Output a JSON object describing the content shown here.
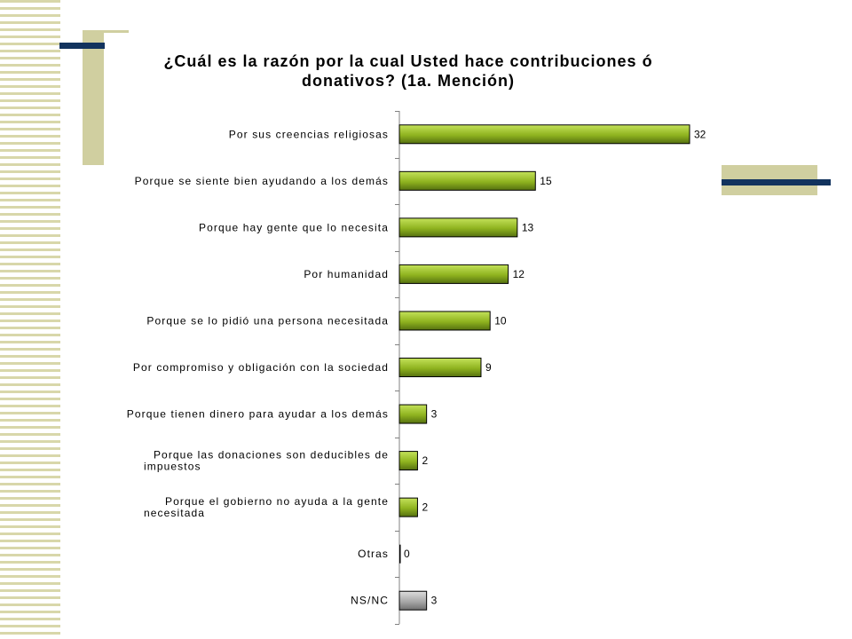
{
  "chart_data": {
    "type": "bar",
    "orientation": "horizontal",
    "title": "¿Cuál es la razón por la cual Usted hace contribuciones ó\ndonativos? (1a. Mención)",
    "categories": [
      [
        "Por sus creencias religiosas"
      ],
      [
        "Porque se siente bien ayudando a los demás"
      ],
      [
        "Porque hay gente que lo necesita"
      ],
      [
        "Por humanidad"
      ],
      [
        "Porque se lo pidió una persona necesitada"
      ],
      [
        "Por compromiso y obligación con la sociedad"
      ],
      [
        "Porque tienen dinero para ayudar a los demás"
      ],
      [
        "Porque las donaciones son deducibles de",
        "impuestos"
      ],
      [
        "Porque el gobierno no ayuda a la gente",
        "necesitada"
      ],
      [
        "Otras"
      ],
      [
        "NS/NC"
      ]
    ],
    "values": [
      32,
      15,
      13,
      12,
      10,
      9,
      3,
      2,
      2,
      0,
      3
    ],
    "data_labels": [
      "32",
      "15",
      "13",
      "12",
      "10",
      "9",
      "3",
      "2",
      "2",
      "0",
      "3"
    ],
    "xlim": [
      0,
      32
    ],
    "grid": false,
    "legend": "none",
    "colors": {
      "bar": "#8fb31f",
      "bar_highlight": "#c4e25a",
      "bar_dark": "#557010",
      "special_bar": "#a8a8a8",
      "special_bar_highlight": "#dedede",
      "special_bar_dark": "#6f6f6f",
      "axis": "#808080"
    }
  }
}
